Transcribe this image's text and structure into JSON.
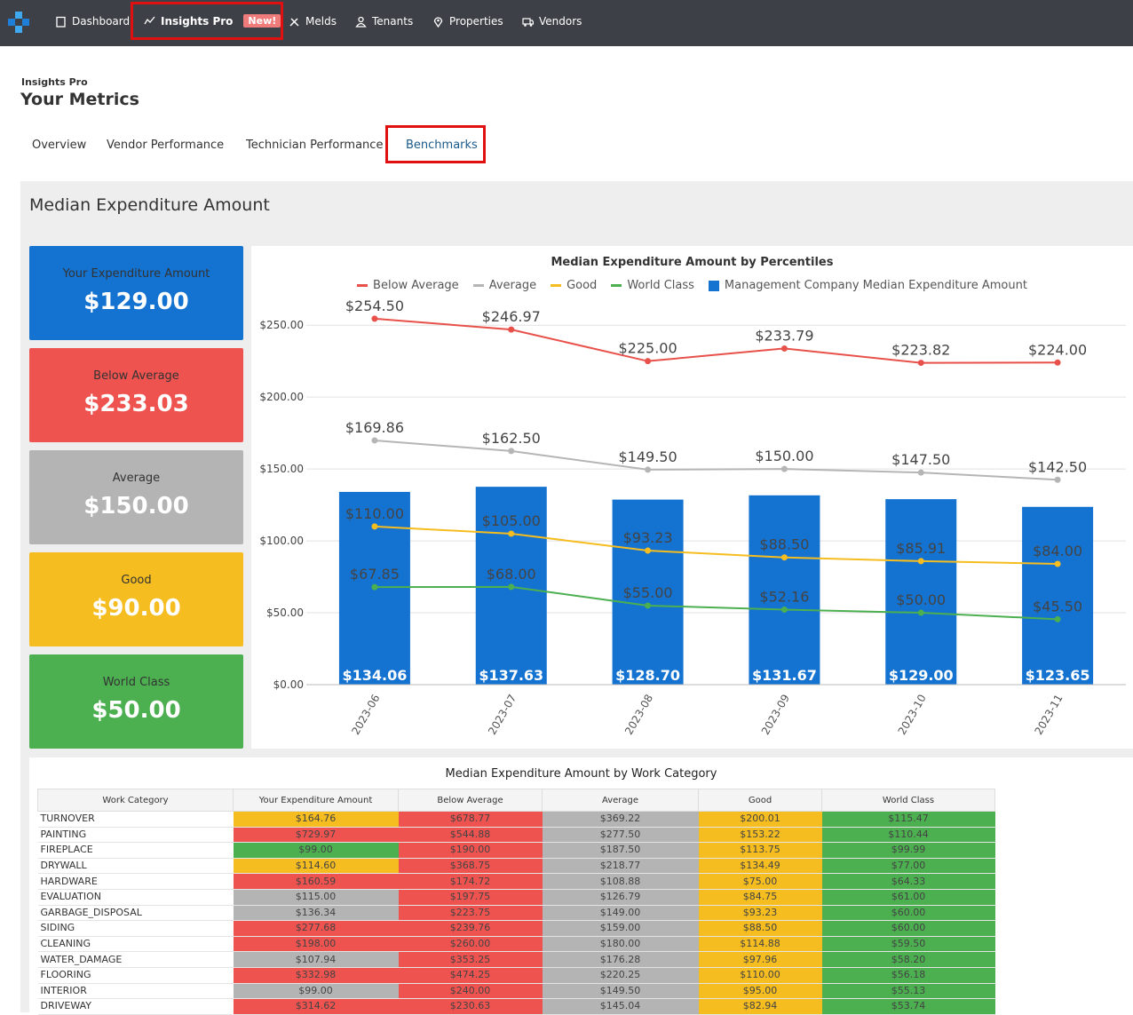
{
  "nav": {
    "items": [
      "Dashboard",
      "Insights Pro",
      "Melds",
      "Tenants",
      "Properties",
      "Vendors"
    ],
    "badge": "New!"
  },
  "header": {
    "section": "Insights Pro",
    "title": "Your Metrics"
  },
  "tabs": [
    "Overview",
    "Vendor Performance",
    "Technician Performance",
    "Benchmarks"
  ],
  "panel_title": "Median Expenditure Amount",
  "cards": [
    {
      "label": "Your Expenditure Amount",
      "value": "$129.00",
      "color": "#1472d0"
    },
    {
      "label": "Below Average",
      "value": "$233.03",
      "color": "#ef5350"
    },
    {
      "label": "Average",
      "value": "$150.00",
      "color": "#b4b4b4"
    },
    {
      "label": "Good",
      "value": "$90.00",
      "color": "#f5bd1f"
    },
    {
      "label": "World Class",
      "value": "$50.00",
      "color": "#4caf50"
    }
  ],
  "chart_data": {
    "type": "bar-line",
    "title": "Median Expenditure Amount by Percentiles",
    "categories": [
      "2023-06",
      "2023-07",
      "2023-08",
      "2023-09",
      "2023-10",
      "2023-11"
    ],
    "ylim": [
      0,
      260
    ],
    "yticks": [
      {
        "value": 0,
        "label": "$0.00"
      },
      {
        "value": 50,
        "label": "$50.00"
      },
      {
        "value": 100,
        "label": "$100.00"
      },
      {
        "value": 150,
        "label": "$150.00"
      },
      {
        "value": 200,
        "label": "$200.00"
      },
      {
        "value": 250,
        "label": "$250.00"
      }
    ],
    "grid": true,
    "series": [
      {
        "name": "Below Average",
        "kind": "line",
        "color": "#e8504a",
        "values": [
          254.5,
          246.97,
          225.0,
          233.79,
          223.82,
          224.0
        ],
        "value_labels": [
          "$254.50",
          "$246.97",
          "$225.00",
          "$233.79",
          "$223.82",
          "$224.00"
        ]
      },
      {
        "name": "Average",
        "kind": "line",
        "color": "#b5b5b5",
        "values": [
          169.86,
          162.5,
          149.5,
          150.0,
          147.5,
          142.5
        ],
        "value_labels": [
          "$169.86",
          "$162.50",
          "$149.50",
          "$150.00",
          "$147.50",
          "$142.50"
        ]
      },
      {
        "name": "Good",
        "kind": "line",
        "color": "#f5bd1f",
        "values": [
          110.0,
          105.0,
          93.23,
          88.5,
          85.91,
          84.0
        ],
        "value_labels": [
          "$110.00",
          "$105.00",
          "$93.23",
          "$88.50",
          "$85.91",
          "$84.00"
        ]
      },
      {
        "name": "World Class",
        "kind": "line",
        "color": "#4caf50",
        "values": [
          67.85,
          68.0,
          55.0,
          52.16,
          50.0,
          45.5
        ],
        "value_labels": [
          "$67.85",
          "$68.00",
          "$55.00",
          "$52.16",
          "$50.00",
          "$45.50"
        ]
      },
      {
        "name": "Management Company Median Expenditure Amount",
        "kind": "bar",
        "color": "#1472d0",
        "values": [
          134.06,
          137.63,
          128.7,
          131.67,
          129.0,
          123.65
        ],
        "value_labels": [
          "$134.06",
          "$137.63",
          "$128.70",
          "$131.67",
          "$129.00",
          "$123.65"
        ]
      }
    ]
  },
  "table": {
    "title": "Median Expenditure Amount by Work Category",
    "columns": [
      "Work Category",
      "Your Expenditure Amount",
      "Below Average",
      "Average",
      "Good",
      "World Class"
    ],
    "benchmark_colors": [
      "#ef5350",
      "#b4b4b4",
      "#f5bd1f",
      "#4caf50"
    ],
    "rows": [
      {
        "cells": [
          "TURNOVER",
          "$164.76",
          "$678.77",
          "$369.22",
          "$200.01",
          "$115.47"
        ],
        "color": "#f5bd1f"
      },
      {
        "cells": [
          "PAINTING",
          "$729.97",
          "$544.88",
          "$277.50",
          "$153.22",
          "$110.44"
        ],
        "color": "#ef5350"
      },
      {
        "cells": [
          "FIREPLACE",
          "$99.00",
          "$190.00",
          "$187.50",
          "$113.75",
          "$99.99"
        ],
        "color": "#4caf50"
      },
      {
        "cells": [
          "DRYWALL",
          "$114.60",
          "$368.75",
          "$218.77",
          "$134.49",
          "$77.00"
        ],
        "color": "#f5bd1f"
      },
      {
        "cells": [
          "HARDWARE",
          "$160.59",
          "$174.72",
          "$108.88",
          "$75.00",
          "$64.33"
        ],
        "color": "#ef5350"
      },
      {
        "cells": [
          "EVALUATION",
          "$115.00",
          "$197.75",
          "$126.79",
          "$84.75",
          "$61.00"
        ],
        "color": "#b4b4b4"
      },
      {
        "cells": [
          "GARBAGE_DISPOSAL",
          "$136.34",
          "$223.75",
          "$149.00",
          "$93.23",
          "$60.00"
        ],
        "color": "#b4b4b4"
      },
      {
        "cells": [
          "SIDING",
          "$277.68",
          "$239.76",
          "$159.00",
          "$88.50",
          "$60.00"
        ],
        "color": "#ef5350"
      },
      {
        "cells": [
          "CLEANING",
          "$198.00",
          "$260.00",
          "$180.00",
          "$114.88",
          "$59.50"
        ],
        "color": "#ef5350"
      },
      {
        "cells": [
          "WATER_DAMAGE",
          "$107.94",
          "$353.25",
          "$176.28",
          "$97.96",
          "$58.20"
        ],
        "color": "#b4b4b4"
      },
      {
        "cells": [
          "FLOORING",
          "$332.98",
          "$474.25",
          "$220.25",
          "$110.00",
          "$56.18"
        ],
        "color": "#ef5350"
      },
      {
        "cells": [
          "INTERIOR",
          "$99.00",
          "$240.00",
          "$149.50",
          "$95.00",
          "$55.13"
        ],
        "color": "#b4b4b4"
      },
      {
        "cells": [
          "DRIVEWAY",
          "$314.62",
          "$230.63",
          "$145.04",
          "$82.94",
          "$53.74"
        ],
        "color": "#ef5350"
      }
    ]
  }
}
